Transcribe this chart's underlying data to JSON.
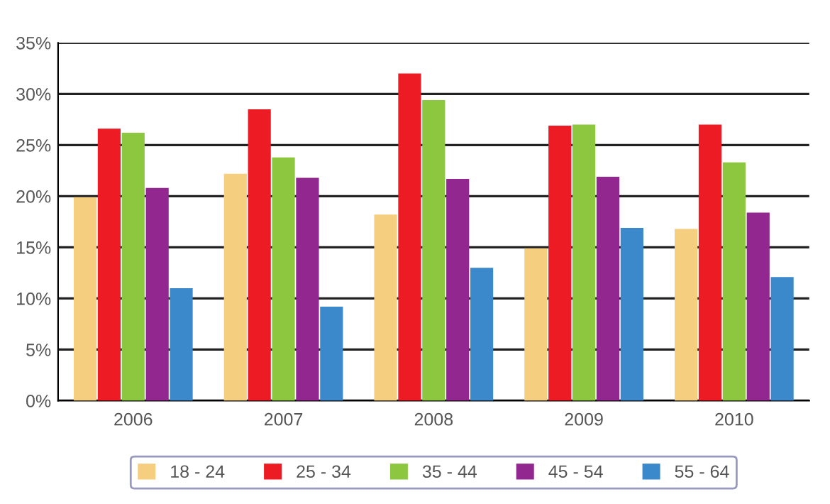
{
  "chart_data": {
    "type": "bar",
    "categories": [
      "2006",
      "2007",
      "2008",
      "2009",
      "2010"
    ],
    "series": [
      {
        "name": "18 - 24",
        "color": "#f5cf7f",
        "values": [
          19.9,
          22.2,
          18.2,
          14.9,
          16.8
        ]
      },
      {
        "name": "25 - 34",
        "color": "#ed1c24",
        "values": [
          26.6,
          28.5,
          32.0,
          26.9,
          27.0
        ]
      },
      {
        "name": "35 - 44",
        "color": "#8dc63f",
        "values": [
          26.2,
          23.8,
          29.4,
          27.0,
          23.3
        ]
      },
      {
        "name": "45 - 54",
        "color": "#92278f",
        "values": [
          20.8,
          21.8,
          21.7,
          21.9,
          18.4
        ]
      },
      {
        "name": "55 - 64",
        "color": "#3b88cb",
        "values": [
          11.0,
          9.2,
          13.0,
          16.9,
          12.1
        ]
      }
    ],
    "ylim": [
      0,
      35
    ],
    "yticks": [
      {
        "value": 0,
        "label": "0%"
      },
      {
        "value": 5,
        "label": "5%"
      },
      {
        "value": 10,
        "label": "10%"
      },
      {
        "value": 15,
        "label": "15%"
      },
      {
        "value": 20,
        "label": "20%"
      },
      {
        "value": 25,
        "label": "25%"
      },
      {
        "value": 30,
        "label": "30%"
      },
      {
        "value": 35,
        "label": "35%"
      }
    ],
    "grid": "y",
    "legend": "bottom"
  }
}
